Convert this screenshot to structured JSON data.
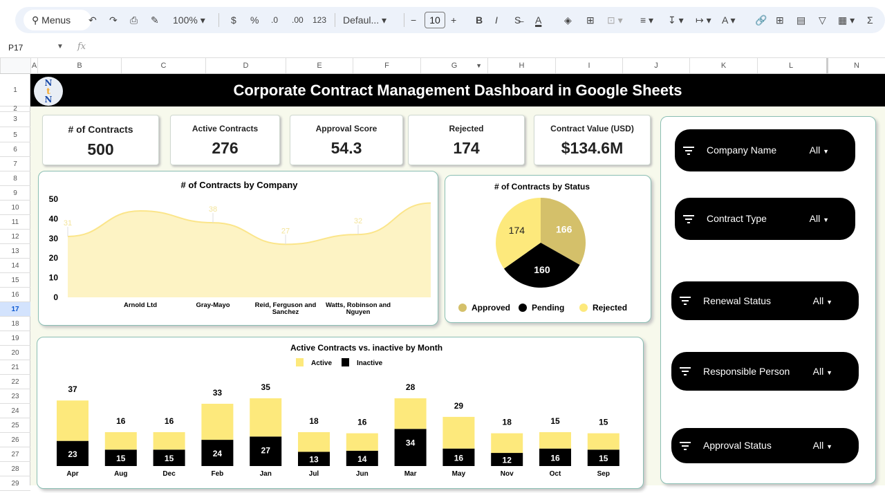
{
  "toolbar": {
    "menus": "Menus",
    "zoom": "100%",
    "currency": "$",
    "percent": "%",
    "dec_less": ".0",
    "dec_more": ".00",
    "number_format": "123",
    "font": "Defaul...",
    "font_size": "10",
    "bold": "B",
    "italic": "I",
    "minus": "−",
    "plus": "+"
  },
  "formula_bar": {
    "cell_ref": "P17",
    "fx": "fx",
    "value": ""
  },
  "columns": [
    "A",
    "B",
    "C",
    "D",
    "E",
    "F",
    "G",
    "H",
    "I",
    "J",
    "K",
    "L",
    "N"
  ],
  "rows": [
    "1",
    "2",
    "3",
    "5",
    "6",
    "7",
    "8",
    "9",
    "10",
    "11",
    "12",
    "13",
    "14",
    "15",
    "16",
    "17",
    "18",
    "19",
    "20",
    "21",
    "22",
    "23",
    "24",
    "25",
    "26",
    "27",
    "28",
    "29"
  ],
  "selected_row": "17",
  "dashboard": {
    "title": "Corporate Contract Management Dashboard in Google Sheets",
    "logo_text": "NtN",
    "kpis": [
      {
        "label": "# of Contracts",
        "value": "500"
      },
      {
        "label": "Active Contracts",
        "value": "276"
      },
      {
        "label": "Approval Score",
        "value": "54.3"
      },
      {
        "label": "Rejected",
        "value": "174"
      },
      {
        "label": "Contract Value (USD)",
        "value": "$134.6M"
      }
    ],
    "filters": [
      {
        "name": "Company Name",
        "value": "All"
      },
      {
        "name": "Contract Type",
        "value": "All"
      },
      {
        "name": "Renewal Status",
        "value": "All"
      },
      {
        "name": "Responsible Person",
        "value": "All"
      },
      {
        "name": "Approval Status",
        "value": "All"
      }
    ]
  },
  "colors": {
    "yellow": "#fde97c",
    "gold": "#d4c06a",
    "black": "#000000",
    "area_fill": "#fdf3c4",
    "area_line": "#fbe58a"
  },
  "chart_data": [
    {
      "type": "area",
      "title": "# of Contracts by Company",
      "categories": [
        "",
        "Arnold Ltd",
        "Gray-Mayo",
        "Reid, Ferguson and Sanchez",
        "Watts, Robinson and Nguyen",
        ""
      ],
      "values": [
        31,
        44,
        38,
        27,
        32,
        48
      ],
      "data_labels": [
        "31",
        "",
        "38",
        "27",
        "32",
        ""
      ],
      "yticks": [
        "0",
        "10",
        "20",
        "30",
        "40",
        "50"
      ],
      "ylim": [
        0,
        50
      ]
    },
    {
      "type": "pie",
      "title": "# of Contracts by Status",
      "labels": [
        "Approved",
        "Pending",
        "Rejected"
      ],
      "values": [
        166,
        160,
        174
      ],
      "value_labels": [
        "166",
        "160",
        "174"
      ],
      "legend": "bottom"
    },
    {
      "type": "bar",
      "stacked": true,
      "title": "Active Contracts vs. inactive by Month",
      "categories": [
        "Apr",
        "Aug",
        "Dec",
        "Feb",
        "Jan",
        "Jul",
        "Jun",
        "Mar",
        "May",
        "Nov",
        "Oct",
        "Sep"
      ],
      "series": [
        {
          "name": "Inactive",
          "values": [
            23,
            15,
            15,
            24,
            27,
            13,
            14,
            34,
            16,
            12,
            16,
            15
          ]
        },
        {
          "name": "Active",
          "values": [
            37,
            16,
            16,
            33,
            35,
            18,
            16,
            28,
            29,
            18,
            15,
            15
          ]
        }
      ],
      "legend": "top"
    }
  ]
}
